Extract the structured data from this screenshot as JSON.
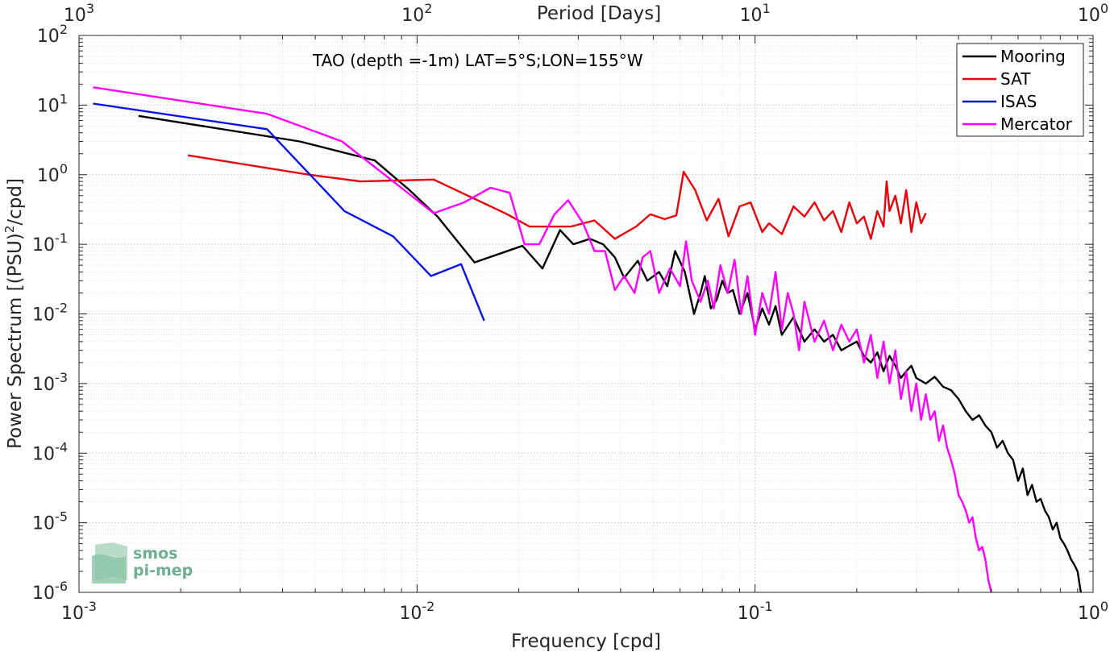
{
  "chart_data": {
    "type": "line",
    "title": "",
    "annotation": "TAO (depth =-1m) LAT=5°S;LON=155°W",
    "xlabel": "Frequency [cpd]",
    "ylabel_pre": "Power Spectrum [(PSU)",
    "ylabel_sup": "2",
    "ylabel_post": "/cpd]",
    "top_xlabel": "Period [Days]",
    "xscale": "log",
    "yscale": "log",
    "xlim": [
      0.001,
      1
    ],
    "ylim": [
      1e-06,
      100
    ],
    "grid": true,
    "legend_position": "top-right",
    "x_ticks": [
      {
        "value": 0.001,
        "base": "10",
        "exp": "-3"
      },
      {
        "value": 0.01,
        "base": "10",
        "exp": "-2"
      },
      {
        "value": 0.1,
        "base": "10",
        "exp": "-1"
      },
      {
        "value": 1,
        "base": "10",
        "exp": "0"
      }
    ],
    "top_ticks": [
      {
        "period": 1000,
        "base": "10",
        "exp": "3"
      },
      {
        "period": 100,
        "base": "10",
        "exp": "2"
      },
      {
        "period": 10,
        "base": "10",
        "exp": "1"
      },
      {
        "period": 1,
        "base": "10",
        "exp": "0"
      }
    ],
    "y_ticks": [
      {
        "value": 1e-06,
        "base": "10",
        "exp": "-6"
      },
      {
        "value": 1e-05,
        "base": "10",
        "exp": "-5"
      },
      {
        "value": 0.0001,
        "base": "10",
        "exp": "-4"
      },
      {
        "value": 0.001,
        "base": "10",
        "exp": "-3"
      },
      {
        "value": 0.01,
        "base": "10",
        "exp": "-2"
      },
      {
        "value": 0.1,
        "base": "10",
        "exp": "-1"
      },
      {
        "value": 1,
        "base": "10",
        "exp": "0"
      },
      {
        "value": 10,
        "base": "10",
        "exp": "1"
      },
      {
        "value": 100,
        "base": "10",
        "exp": "2"
      }
    ],
    "series": [
      {
        "name": "Mooring",
        "color": "#000000",
        "x": [
          0.0015,
          0.0045,
          0.0075,
          0.0095,
          0.0115,
          0.0148,
          0.0205,
          0.0235,
          0.0265,
          0.029,
          0.0325,
          0.0355,
          0.0385,
          0.041,
          0.045,
          0.048,
          0.052,
          0.055,
          0.058,
          0.062,
          0.066,
          0.069,
          0.071,
          0.074,
          0.077,
          0.08,
          0.083,
          0.086,
          0.09,
          0.095,
          0.1,
          0.105,
          0.11,
          0.115,
          0.12,
          0.13,
          0.14,
          0.15,
          0.16,
          0.17,
          0.18,
          0.19,
          0.2,
          0.21,
          0.22,
          0.23,
          0.24,
          0.25,
          0.26,
          0.27,
          0.28,
          0.29,
          0.3,
          0.32,
          0.34,
          0.36,
          0.38,
          0.4,
          0.42,
          0.44,
          0.46,
          0.48,
          0.5,
          0.52,
          0.54,
          0.56,
          0.58,
          0.6,
          0.62,
          0.64,
          0.66,
          0.68,
          0.7,
          0.72,
          0.74,
          0.76,
          0.78,
          0.8,
          0.82,
          0.84,
          0.86,
          0.88,
          0.9,
          0.92
        ],
        "values": [
          7.0,
          3.0,
          1.6,
          0.6,
          0.25,
          0.055,
          0.095,
          0.045,
          0.16,
          0.1,
          0.12,
          0.1,
          0.065,
          0.033,
          0.058,
          0.03,
          0.04,
          0.025,
          0.08,
          0.04,
          0.01,
          0.02,
          0.035,
          0.012,
          0.016,
          0.03,
          0.02,
          0.022,
          0.01,
          0.02,
          0.006,
          0.012,
          0.007,
          0.013,
          0.005,
          0.009,
          0.004,
          0.006,
          0.004,
          0.005,
          0.003,
          0.0035,
          0.004,
          0.0025,
          0.002,
          0.0028,
          0.0015,
          0.0025,
          0.0018,
          0.0012,
          0.0015,
          0.0018,
          0.0012,
          0.001,
          0.00125,
          0.0009,
          0.0008,
          0.0006,
          0.0004,
          0.0003,
          0.00035,
          0.00025,
          0.0002,
          0.00012,
          0.00015,
          0.0001,
          8e-05,
          4e-05,
          6e-05,
          2.5e-05,
          3.5e-05,
          2e-05,
          2.2e-05,
          1.5e-05,
          1.2e-05,
          8e-06,
          1e-05,
          6e-06,
          5e-06,
          4e-06,
          3e-06,
          2.5e-06,
          2e-06,
          1e-06
        ]
      },
      {
        "name": "SAT",
        "color": "#e8000b",
        "x": [
          0.0021,
          0.0048,
          0.0068,
          0.0112,
          0.0185,
          0.0215,
          0.0285,
          0.0335,
          0.0385,
          0.0445,
          0.049,
          0.054,
          0.0585,
          0.0615,
          0.0665,
          0.072,
          0.078,
          0.0835,
          0.09,
          0.097,
          0.105,
          0.11,
          0.12,
          0.13,
          0.14,
          0.15,
          0.16,
          0.17,
          0.18,
          0.19,
          0.2,
          0.21,
          0.22,
          0.23,
          0.24,
          0.245,
          0.25,
          0.26,
          0.27,
          0.28,
          0.29,
          0.3,
          0.31,
          0.32
        ],
        "values": [
          1.9,
          1.0,
          0.8,
          0.85,
          0.27,
          0.18,
          0.18,
          0.22,
          0.12,
          0.18,
          0.27,
          0.23,
          0.26,
          1.1,
          0.6,
          0.22,
          0.45,
          0.13,
          0.35,
          0.4,
          0.15,
          0.2,
          0.14,
          0.35,
          0.25,
          0.4,
          0.22,
          0.3,
          0.15,
          0.4,
          0.2,
          0.25,
          0.12,
          0.3,
          0.18,
          0.8,
          0.3,
          0.5,
          0.2,
          0.6,
          0.15,
          0.4,
          0.2,
          0.28
        ]
      },
      {
        "name": "ISAS",
        "color": "#0a14e8",
        "x": [
          0.0011,
          0.0036,
          0.0061,
          0.0085,
          0.011,
          0.0135,
          0.0158
        ],
        "values": [
          10.5,
          4.5,
          0.3,
          0.13,
          0.035,
          0.052,
          0.008
        ]
      },
      {
        "name": "Mercator",
        "color": "#ff00ff",
        "x": [
          0.0011,
          0.0036,
          0.006,
          0.0085,
          0.0112,
          0.0138,
          0.0165,
          0.0188,
          0.0208,
          0.023,
          0.0255,
          0.028,
          0.031,
          0.0335,
          0.036,
          0.0385,
          0.041,
          0.044,
          0.0465,
          0.049,
          0.052,
          0.056,
          0.06,
          0.0625,
          0.065,
          0.069,
          0.0725,
          0.0755,
          0.079,
          0.083,
          0.087,
          0.091,
          0.095,
          0.1,
          0.105,
          0.11,
          0.115,
          0.12,
          0.125,
          0.13,
          0.135,
          0.14,
          0.15,
          0.16,
          0.17,
          0.18,
          0.19,
          0.2,
          0.21,
          0.22,
          0.23,
          0.24,
          0.25,
          0.26,
          0.27,
          0.28,
          0.29,
          0.3,
          0.31,
          0.32,
          0.33,
          0.34,
          0.35,
          0.36,
          0.37,
          0.38,
          0.39,
          0.4,
          0.41,
          0.42,
          0.43,
          0.44,
          0.45,
          0.46,
          0.47,
          0.48,
          0.49,
          0.5
        ],
        "values": [
          18.0,
          7.5,
          3.0,
          0.8,
          0.28,
          0.4,
          0.65,
          0.55,
          0.1,
          0.1,
          0.27,
          0.43,
          0.2,
          0.08,
          0.08,
          0.022,
          0.035,
          0.02,
          0.065,
          0.08,
          0.02,
          0.045,
          0.025,
          0.11,
          0.03,
          0.015,
          0.03,
          0.012,
          0.05,
          0.02,
          0.06,
          0.01,
          0.035,
          0.005,
          0.02,
          0.01,
          0.04,
          0.006,
          0.02,
          0.01,
          0.003,
          0.015,
          0.004,
          0.008,
          0.003,
          0.007,
          0.004,
          0.006,
          0.002,
          0.005,
          0.0012,
          0.004,
          0.001,
          0.003,
          0.0006,
          0.0015,
          0.0004,
          0.001,
          0.0003,
          0.0007,
          0.0003,
          0.0004,
          0.00015,
          0.00025,
          0.00012,
          8e-05,
          5e-05,
          2.5e-05,
          2e-05,
          1.5e-05,
          1e-05,
          1.2e-05,
          6e-06,
          4e-06,
          4.5e-06,
          3e-06,
          1.5e-06,
          1e-06
        ]
      }
    ]
  },
  "logo": {
    "line1": "smos",
    "line2": "pi-mep"
  }
}
